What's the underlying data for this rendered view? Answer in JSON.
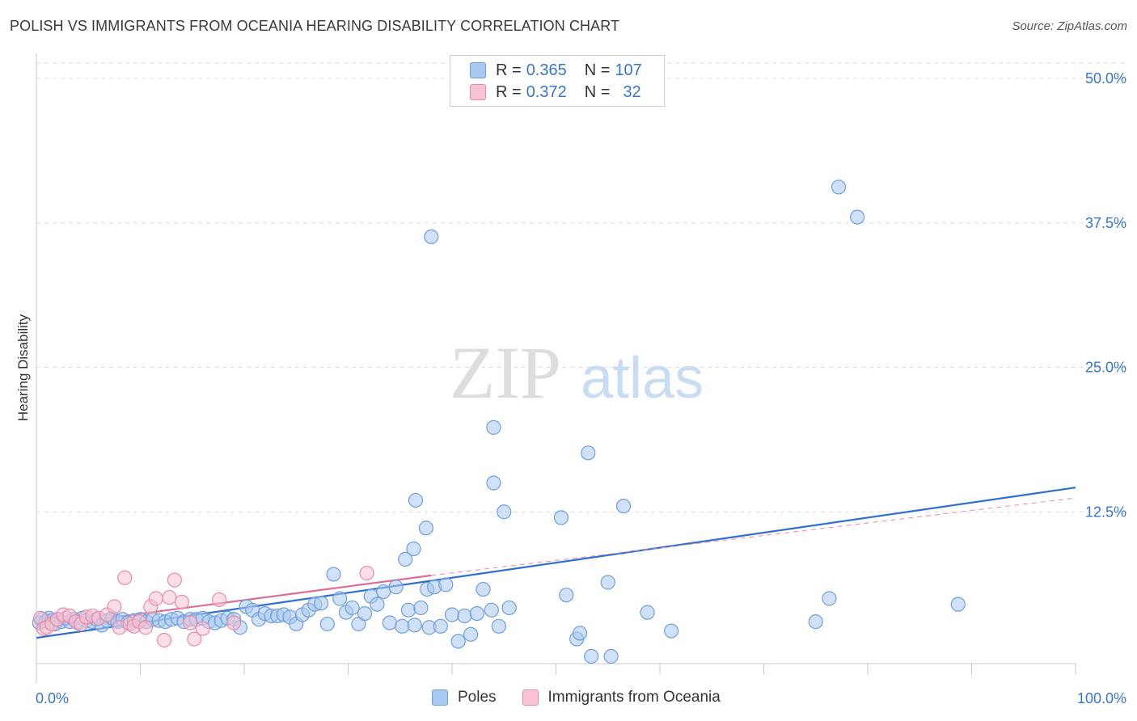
{
  "title": "POLISH VS IMMIGRANTS FROM OCEANIA HEARING DISABILITY CORRELATION CHART",
  "source": "Source: ZipAtlas.com",
  "legend_top": [
    {
      "r_label": "R =",
      "r_value": "0.365",
      "n_label": "N =",
      "n_value": "107",
      "color": "#a9c8f0",
      "border": "#6f9fdc"
    },
    {
      "r_label": "R =",
      "r_value": "0.372",
      "n_label": "N =",
      "n_value": "32",
      "color": "#f7c3d3",
      "border": "#e98aa9"
    }
  ],
  "legend_bottom": [
    {
      "label": "Poles",
      "color": "#a9c8f0",
      "border": "#6f9fdc"
    },
    {
      "label": "Immigrants from Oceania",
      "color": "#f7c3d3",
      "border": "#e98aa9"
    }
  ],
  "watermark": {
    "zip": "ZIP",
    "atlas": "atlas"
  },
  "chart_data": {
    "type": "scatter",
    "title": "POLISH VS IMMIGRANTS FROM OCEANIA HEARING DISABILITY CORRELATION CHART",
    "xlabel": "",
    "ylabel": "Hearing Disability",
    "xlim": [
      0,
      100
    ],
    "ylim": [
      0,
      52
    ],
    "x_tick_labels": [
      "0.0%",
      "100.0%"
    ],
    "y_ticks": [
      12.5,
      25.0,
      37.5,
      50.0
    ],
    "y_tick_labels": [
      "12.5%",
      "25.0%",
      "37.5%",
      "50.0%"
    ],
    "series": [
      {
        "name": "Poles",
        "color": "#6f9fdc",
        "fill": "#a9c8f0",
        "trend": {
          "x0": 0,
          "y0": 1.6,
          "x1": 100,
          "y1": 14.6
        },
        "points": [
          [
            0.3,
            2.9
          ],
          [
            0.6,
            3.2
          ],
          [
            0.9,
            3.0
          ],
          [
            1.2,
            3.3
          ],
          [
            1.5,
            3.1
          ],
          [
            1.8,
            2.8
          ],
          [
            2.1,
            3.2
          ],
          [
            2.4,
            3.0
          ],
          [
            2.8,
            3.3
          ],
          [
            3.2,
            3.0
          ],
          [
            3.6,
            3.2
          ],
          [
            4.0,
            2.9
          ],
          [
            4.4,
            3.3
          ],
          [
            4.8,
            3.1
          ],
          [
            5.3,
            3.0
          ],
          [
            5.8,
            3.2
          ],
          [
            6.3,
            2.7
          ],
          [
            6.8,
            3.1
          ],
          [
            7.3,
            3.3
          ],
          [
            7.8,
            3.0
          ],
          [
            8.3,
            3.2
          ],
          [
            8.8,
            2.9
          ],
          [
            9.4,
            3.1
          ],
          [
            10.0,
            3.2
          ],
          [
            10.6,
            3.0
          ],
          [
            11.2,
            3.2
          ],
          [
            11.8,
            3.1
          ],
          [
            12.4,
            3.0
          ],
          [
            13.0,
            3.2
          ],
          [
            13.6,
            3.3
          ],
          [
            14.2,
            3.0
          ],
          [
            14.8,
            3.2
          ],
          [
            15.4,
            3.2
          ],
          [
            16.0,
            3.3
          ],
          [
            16.6,
            3.0
          ],
          [
            17.2,
            2.9
          ],
          [
            17.8,
            3.1
          ],
          [
            18.4,
            3.3
          ],
          [
            19.0,
            3.2
          ],
          [
            19.6,
            2.5
          ],
          [
            20.2,
            4.3
          ],
          [
            20.8,
            4.0
          ],
          [
            21.4,
            3.2
          ],
          [
            22.0,
            3.7
          ],
          [
            22.6,
            3.5
          ],
          [
            23.2,
            3.5
          ],
          [
            23.8,
            3.6
          ],
          [
            24.4,
            3.4
          ],
          [
            25.0,
            2.8
          ],
          [
            25.6,
            3.6
          ],
          [
            26.2,
            4.0
          ],
          [
            26.8,
            4.5
          ],
          [
            27.4,
            4.6
          ],
          [
            28.0,
            2.8
          ],
          [
            28.6,
            7.1
          ],
          [
            29.2,
            5.0
          ],
          [
            29.8,
            3.8
          ],
          [
            30.4,
            4.2
          ],
          [
            31.0,
            2.8
          ],
          [
            31.6,
            3.7
          ],
          [
            32.2,
            5.2
          ],
          [
            32.8,
            4.5
          ],
          [
            33.4,
            5.6
          ],
          [
            34.0,
            2.9
          ],
          [
            34.6,
            6.0
          ],
          [
            35.2,
            2.6
          ],
          [
            35.8,
            4.0
          ],
          [
            36.4,
            2.7
          ],
          [
            37.0,
            4.2
          ],
          [
            37.6,
            5.8
          ],
          [
            37.8,
            2.5
          ],
          [
            38.3,
            6.0
          ],
          [
            38.9,
            2.6
          ],
          [
            39.4,
            6.2
          ],
          [
            40.0,
            3.6
          ],
          [
            40.6,
            1.3
          ],
          [
            41.2,
            3.5
          ],
          [
            41.8,
            1.9
          ],
          [
            42.4,
            3.7
          ],
          [
            43.0,
            5.8
          ],
          [
            43.8,
            4.0
          ],
          [
            44.5,
            2.6
          ],
          [
            45.5,
            4.2
          ],
          [
            45.0,
            12.5
          ],
          [
            44.0,
            15.0
          ],
          [
            44.0,
            19.8
          ],
          [
            38.0,
            36.3
          ],
          [
            36.5,
            13.5
          ],
          [
            37.5,
            11.1
          ],
          [
            36.3,
            9.3
          ],
          [
            35.5,
            8.4
          ],
          [
            51.0,
            5.3
          ],
          [
            52.0,
            1.5
          ],
          [
            50.5,
            12.0
          ],
          [
            52.3,
            2.0
          ],
          [
            53.4,
            0.0
          ],
          [
            55.3,
            0.0
          ],
          [
            55.0,
            6.4
          ],
          [
            53.1,
            17.6
          ],
          [
            56.5,
            13.0
          ],
          [
            58.8,
            3.8
          ],
          [
            61.1,
            2.2
          ],
          [
            75.0,
            3.0
          ],
          [
            76.3,
            5.0
          ],
          [
            77.2,
            40.6
          ],
          [
            79.0,
            38.0
          ],
          [
            88.7,
            4.5
          ]
        ]
      },
      {
        "name": "Immigrants from Oceania",
        "color": "#e98aa9",
        "fill": "#f7c3d3",
        "trend": {
          "x0": 0,
          "y0": 2.5,
          "x1": 38,
          "y1": 7.0
        },
        "trend_ext": {
          "x0": 38,
          "y0": 7.0,
          "x1": 100,
          "y1": 13.7
        },
        "points": [
          [
            0.4,
            3.3
          ],
          [
            0.7,
            2.4
          ],
          [
            1.0,
            2.5
          ],
          [
            1.5,
            2.8
          ],
          [
            2.0,
            3.2
          ],
          [
            2.6,
            3.6
          ],
          [
            3.2,
            3.5
          ],
          [
            3.8,
            3.0
          ],
          [
            4.3,
            2.8
          ],
          [
            4.8,
            3.4
          ],
          [
            5.4,
            3.5
          ],
          [
            6.0,
            3.3
          ],
          [
            6.8,
            3.6
          ],
          [
            7.5,
            4.3
          ],
          [
            8.0,
            2.5
          ],
          [
            8.5,
            6.8
          ],
          [
            9.0,
            2.8
          ],
          [
            9.4,
            2.6
          ],
          [
            9.9,
            3.0
          ],
          [
            10.5,
            2.5
          ],
          [
            11.0,
            4.3
          ],
          [
            11.5,
            5.0
          ],
          [
            12.3,
            1.4
          ],
          [
            12.8,
            5.1
          ],
          [
            13.3,
            6.6
          ],
          [
            14.0,
            4.7
          ],
          [
            14.8,
            2.9
          ],
          [
            15.2,
            1.5
          ],
          [
            16.0,
            2.4
          ],
          [
            17.6,
            4.9
          ],
          [
            19.0,
            2.9
          ],
          [
            31.8,
            7.2
          ]
        ]
      }
    ]
  }
}
